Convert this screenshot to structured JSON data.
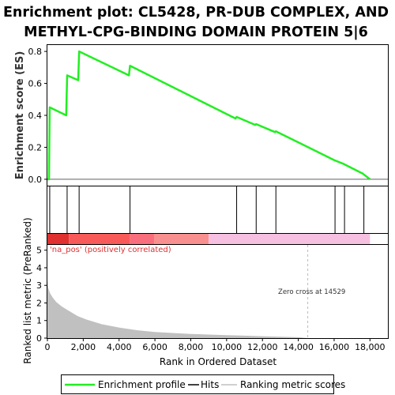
{
  "title_line1": "Enrichment plot: CL5428, PR-DUB COMPLEX, AND",
  "title_line2": "METHYL-CPG-BINDING DOMAIN PROTEIN 5|6",
  "colors": {
    "enrichment_line": "#22ee22",
    "hits": "#000000",
    "metric_fill": "#c0c0c0",
    "zero_cross_line": "#bbbbbb",
    "positive_label": "#e03030"
  },
  "chart_data": [
    {
      "type": "line",
      "name": "enrichment-profile",
      "ylabel": "Enrichment score (ES)",
      "xlim": [
        0,
        19000
      ],
      "ylim": [
        -0.04,
        0.84
      ],
      "yticks": [
        0.0,
        0.2,
        0.4,
        0.6,
        0.8
      ],
      "ytick_labels": [
        "0.0",
        "0.2",
        "0.4",
        "0.6",
        "0.8"
      ],
      "grid": false,
      "points": [
        [
          0,
          0.0
        ],
        [
          90,
          0.0
        ],
        [
          130,
          0.45
        ],
        [
          1050,
          0.4
        ],
        [
          1100,
          0.65
        ],
        [
          1720,
          0.62
        ],
        [
          1770,
          0.8
        ],
        [
          4550,
          0.65
        ],
        [
          4610,
          0.71
        ],
        [
          10500,
          0.38
        ],
        [
          10560,
          0.39
        ],
        [
          11600,
          0.34
        ],
        [
          11650,
          0.345
        ],
        [
          12700,
          0.295
        ],
        [
          12750,
          0.3
        ],
        [
          16000,
          0.12
        ],
        [
          16550,
          0.095
        ],
        [
          17600,
          0.035
        ],
        [
          18000,
          0.0
        ]
      ]
    },
    {
      "type": "scatter",
      "name": "hits",
      "hit_positions": [
        130,
        1100,
        1770,
        4610,
        10560,
        11650,
        12750,
        16050,
        16580,
        17660
      ]
    },
    {
      "type": "heatmap",
      "name": "rank-color-bar",
      "segments": [
        {
          "start": 0,
          "end": 1200,
          "color": "#e03030"
        },
        {
          "start": 1200,
          "end": 4600,
          "color": "#f85a5a"
        },
        {
          "start": 4600,
          "end": 5950,
          "color": "#f86e7c"
        },
        {
          "start": 5950,
          "end": 9000,
          "color": "#f99090"
        },
        {
          "start": 9000,
          "end": 18000,
          "color": "#f6c0e0"
        }
      ]
    },
    {
      "type": "area",
      "name": "ranked-list-metric",
      "xlabel": "Rank in Ordered Dataset",
      "ylabel": "Ranked list metric (PreRanked)",
      "xlim": [
        0,
        19000
      ],
      "ylim": [
        0,
        5.3
      ],
      "xticks": [
        0,
        2000,
        4000,
        6000,
        8000,
        10000,
        12000,
        14000,
        16000,
        18000
      ],
      "xtick_labels": [
        "0",
        "2,000",
        "4,000",
        "6,000",
        "8,000",
        "10,000",
        "12,000",
        "14,000",
        "16,000",
        "18,000"
      ],
      "yticks": [
        0,
        1,
        2,
        3,
        4,
        5
      ],
      "ytick_labels": [
        "0",
        "1",
        "2",
        "3",
        "4",
        "5"
      ],
      "points": [
        [
          0,
          3.3
        ],
        [
          50,
          2.85
        ],
        [
          150,
          2.55
        ],
        [
          300,
          2.3
        ],
        [
          500,
          2.05
        ],
        [
          800,
          1.8
        ],
        [
          1200,
          1.55
        ],
        [
          1700,
          1.25
        ],
        [
          2200,
          1.05
        ],
        [
          3000,
          0.8
        ],
        [
          4000,
          0.6
        ],
        [
          5000,
          0.45
        ],
        [
          6000,
          0.35
        ],
        [
          7000,
          0.29
        ],
        [
          8000,
          0.24
        ],
        [
          9000,
          0.2
        ],
        [
          10000,
          0.17
        ],
        [
          11000,
          0.14
        ],
        [
          12000,
          0.11
        ],
        [
          13000,
          0.08
        ],
        [
          14000,
          0.05
        ],
        [
          14529,
          0.0
        ]
      ],
      "zero_cross": 14529,
      "annotations": {
        "positive": "'na_pos' (positively correlated)",
        "zero_cross": "Zero cross at 14529"
      }
    }
  ],
  "legend": {
    "items": [
      {
        "label": "Enrichment profile",
        "color": "#22ee22"
      },
      {
        "label": "Hits",
        "color": "#000000"
      },
      {
        "label": "Ranking metric scores",
        "color": "#c0c0c0"
      }
    ]
  }
}
